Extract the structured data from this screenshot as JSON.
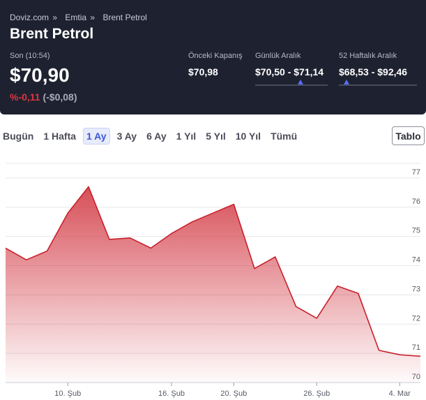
{
  "breadcrumb": {
    "site": "Doviz.com",
    "category": "Emtia",
    "current": "Brent Petrol",
    "sep": "»"
  },
  "title": "Brent Petrol",
  "last": {
    "label": "Son (10:54)",
    "price": "$70,90",
    "change_pct": "%-0,11",
    "change_abs": "(-$0,08)"
  },
  "stats": {
    "prev_close": {
      "label": "Önceki Kapanış",
      "value": "$70,98"
    },
    "daily_range": {
      "label": "Günlük Aralık",
      "value": "$70,50 - $71,14",
      "marker_fraction": 0.625
    },
    "week52_range": {
      "label": "52 Haftalık Aralık",
      "value": "$68,53 - $92,46",
      "marker_fraction": 0.1
    }
  },
  "colors": {
    "header_bg": "#1e2230",
    "negative": "#e0343f",
    "accent": "#3d57d8",
    "line": "#c8202b"
  },
  "tabs": [
    "Bugün",
    "1 Hafta",
    "1 Ay",
    "3 Ay",
    "6 Ay",
    "1 Yıl",
    "5 Yıl",
    "10 Yıl",
    "Tümü"
  ],
  "active_tab": "1 Ay",
  "table_button": "Tablo",
  "chart_data": {
    "type": "area",
    "title": "",
    "xlabel": "",
    "ylabel": "",
    "ylim": [
      70,
      77.5
    ],
    "y_ticks": [
      "70",
      "71",
      "72",
      "73",
      "74",
      "75",
      "76",
      "77"
    ],
    "x_ticks": [
      "10. Şub",
      "16. Şub",
      "20. Şub",
      "26. Şub",
      "4. Mar"
    ],
    "x_tick_index": [
      3,
      8,
      11,
      15,
      19
    ],
    "values": [
      74.6,
      74.2,
      74.5,
      75.8,
      76.7,
      74.9,
      74.95,
      74.6,
      75.1,
      75.5,
      75.8,
      76.1,
      73.9,
      74.3,
      72.6,
      72.2,
      73.3,
      73.05,
      71.1,
      70.95,
      70.9
    ],
    "grid": true,
    "legend": "none"
  }
}
